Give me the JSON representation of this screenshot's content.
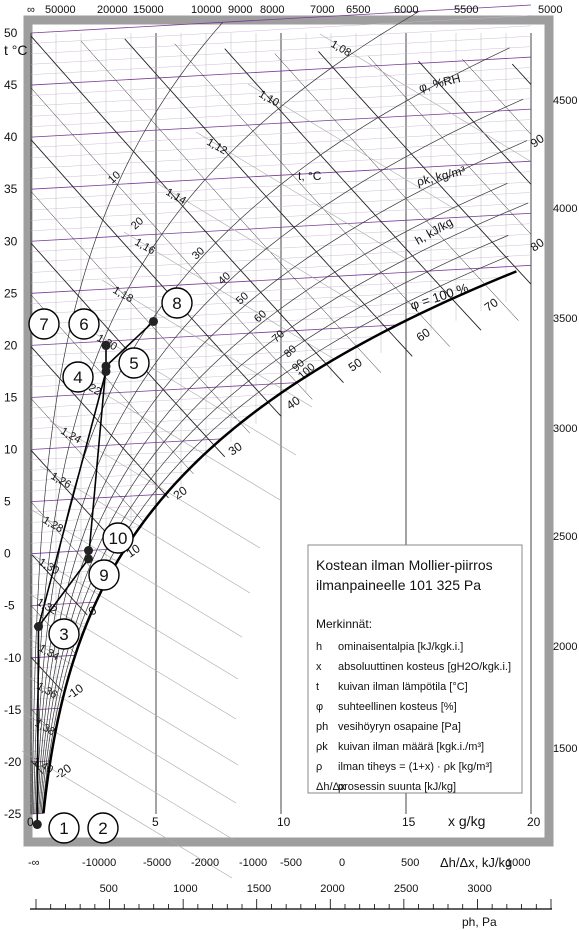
{
  "chart_data": {
    "type": "psychrometric-chart",
    "title": "Kostean ilman Mollier-piirros",
    "subtitle": "ilmanpaineelle 101 325 Pa",
    "xlabel": "x g/kg",
    "ylabel": "t °C",
    "xlim": [
      0,
      20
    ],
    "ylim": [
      -25,
      50
    ],
    "x_ticks": [
      "0",
      "5",
      "10",
      "15",
      "20"
    ],
    "y_ticks": [
      "-25",
      "-20",
      "-15",
      "-10",
      "-5",
      "0",
      "5",
      "10",
      "15",
      "20",
      "25",
      "30",
      "35",
      "40",
      "45",
      "50"
    ],
    "top_scale": [
      "∞",
      "50000",
      "20000",
      "15000",
      "10000",
      "9000",
      "8000",
      "7000",
      "6500",
      "6000",
      "5500",
      "5000"
    ],
    "right_scale": [
      "4500",
      "4000",
      "3500",
      "3000",
      "2500",
      "2000",
      "1500"
    ],
    "bottom_scale": {
      "label": "Δh/Δx, kJ/kg",
      "ticks": [
        "-∞",
        "-10000",
        "-5000",
        "-2000",
        "-1000",
        "-500",
        "0",
        "500",
        "1000"
      ]
    },
    "pressure_scale": {
      "label": "ph, Pa",
      "ticks": [
        "500",
        "1000",
        "1500",
        "2000",
        "2500",
        "3000"
      ]
    },
    "curve_labels": {
      "rh": "φ, %RH",
      "density": "ρk, kg/m³",
      "enthalpy": "h, kJ/kg",
      "temperature": "t, °C",
      "saturation": "φ = 100 %"
    },
    "enthalpy_line_labels": [
      "-20",
      "-10",
      "0",
      "10",
      "20",
      "30",
      "40",
      "50",
      "60",
      "70",
      "80",
      "90"
    ],
    "density_line_labels": [
      "1,08",
      "1,10",
      "1,12",
      "1,14",
      "1,16",
      "1,18",
      "1,20",
      "1,22",
      "1,24",
      "1,26",
      "1,28",
      "1,30",
      "1,32",
      "1,34",
      "1,36",
      "1,38",
      "1,40"
    ],
    "rh_line_labels": [
      "10",
      "20",
      "30",
      "40",
      "50",
      "60",
      "70",
      "80",
      "90",
      "100"
    ],
    "process_points": [
      {
        "label": "1",
        "x": 0.25,
        "t": -26
      },
      {
        "label": "2",
        "x": 0.25,
        "t": -26
      },
      {
        "label": "3",
        "x": 0.3,
        "t": -7
      },
      {
        "label": "4",
        "x": 3.0,
        "t": 17.5
      },
      {
        "label": "5",
        "x": 3.0,
        "t": 18
      },
      {
        "label": "6",
        "x": 3.0,
        "t": 20
      },
      {
        "label": "7",
        "x": 3.0,
        "t": 20
      },
      {
        "label": "8",
        "x": 4.9,
        "t": 22.3
      },
      {
        "label": "9",
        "x": 2.3,
        "t": -0.5
      },
      {
        "label": "10",
        "x": 2.3,
        "t": 0.3
      }
    ],
    "legend": {
      "heading": "Merkinnät:",
      "items": [
        {
          "symbol": "h",
          "text": "ominaisentalpia [kJ/kgk.i.]"
        },
        {
          "symbol": "x",
          "text": "absoluuttinen kosteus [gH2O/kgk.i.]"
        },
        {
          "symbol": "t",
          "text": "kuivan ilman lämpötila [°C]"
        },
        {
          "symbol": "φ",
          "text": "suhteellinen kosteus [%]"
        },
        {
          "symbol": "ph",
          "text": "vesihöyryn osapaine [Pa]"
        },
        {
          "symbol": "ρk",
          "text": "kuivan ilman määrä [kgk.i./m³]"
        },
        {
          "symbol": "ρ",
          "text": "ilman tiheys = (1+x) · ρk [kg/m³]"
        },
        {
          "symbol": "Δh/Δx",
          "text": "prosessin suunta [kJ/kg]"
        }
      ]
    },
    "colors": {
      "enthalpy": "#222222",
      "rh": "#7a3b9a",
      "density": "#9a9a9a",
      "frame": "#9e9e9e",
      "saturation": "#000000"
    }
  }
}
